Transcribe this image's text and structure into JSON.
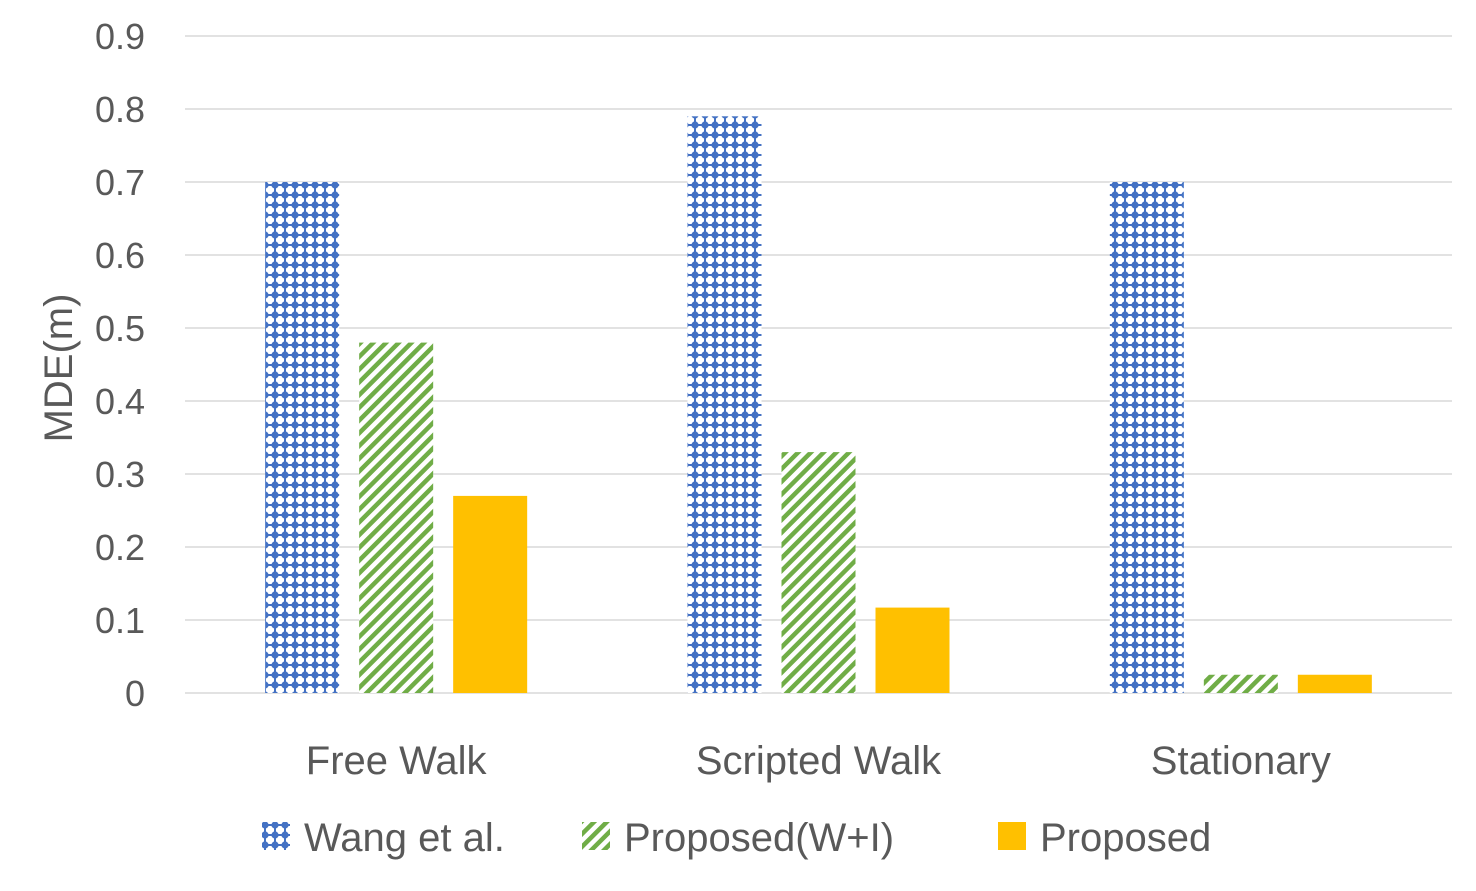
{
  "chart_data": {
    "type": "bar",
    "title": "",
    "xlabel": "",
    "ylabel": "MDE(m)",
    "ylim": [
      0,
      0.9
    ],
    "yticks": [
      0,
      0.1,
      0.2,
      0.3,
      0.4,
      0.5,
      0.6,
      0.7,
      0.8,
      0.9
    ],
    "ytick_labels": [
      "0",
      "0.1",
      "0.2",
      "0.3",
      "0.4",
      "0.5",
      "0.6",
      "0.7",
      "0.8",
      "0.9"
    ],
    "categories": [
      "Free Walk",
      "Scripted Walk",
      "Stationary"
    ],
    "series": [
      {
        "name": "Wang et al.",
        "values": [
          0.7,
          0.79,
          0.7
        ],
        "color": "#4472C4",
        "pattern": "dotted-grid"
      },
      {
        "name": "Proposed(W+I)",
        "values": [
          0.48,
          0.33,
          0.025
        ],
        "color": "#70AD47",
        "pattern": "diagonal-stripes"
      },
      {
        "name": "Proposed",
        "values": [
          0.27,
          0.117,
          0.025
        ],
        "color": "#FFC000",
        "pattern": "solid"
      }
    ],
    "grid": true,
    "legend": "bottom"
  }
}
